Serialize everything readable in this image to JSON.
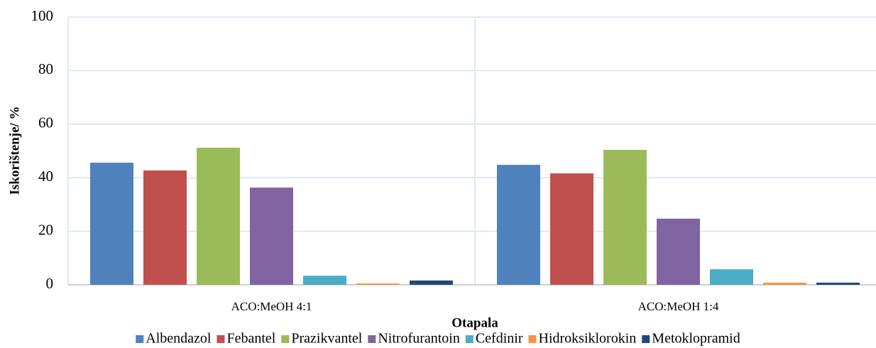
{
  "chart_data": {
    "type": "bar",
    "categories": [
      "ACO:MeOH 4:1",
      "ACO:MeOH 1:4"
    ],
    "series": [
      {
        "name": "Albendazol",
        "color": "#4f81bd",
        "values": [
          45.6,
          44.8
        ]
      },
      {
        "name": "Febantel",
        "color": "#c0504d",
        "values": [
          42.7,
          41.6
        ]
      },
      {
        "name": "Prazikvantel",
        "color": "#9bbb59",
        "values": [
          51.2,
          50.4
        ]
      },
      {
        "name": "Nitrofurantoin",
        "color": "#8064a2",
        "values": [
          36.3,
          24.7
        ]
      },
      {
        "name": "Cefdinir",
        "color": "#4bacc6",
        "values": [
          3.4,
          5.8
        ]
      },
      {
        "name": "Hidroksiklorokin",
        "color": "#f79646",
        "values": [
          0.5,
          0.8
        ]
      },
      {
        "name": "Metoklopramid",
        "color": "#1f497d",
        "values": [
          1.6,
          0.8
        ]
      }
    ],
    "x_label": "Otapala",
    "y_label": "Iskorištenje/ %",
    "ylim": [
      0,
      100
    ],
    "yticks": [
      0,
      20,
      40,
      60,
      80,
      100
    ],
    "grid": true,
    "legend": "bottom"
  }
}
